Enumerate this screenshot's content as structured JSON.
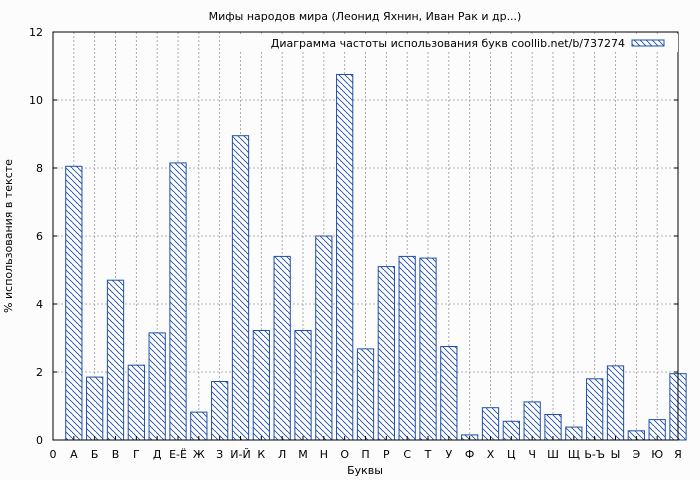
{
  "chart_data": {
    "type": "bar",
    "title": "Мифы народов мира  (Леонид Яхнин, Иван Рак и др...)",
    "xlabel": "Буквы",
    "ylabel": "% использования в тексте",
    "legend": {
      "label": "Диаграмма частоты использования букв coollib.net/b/737274",
      "position": "top-right"
    },
    "x_ticks": [
      "0",
      "А",
      "Б",
      "В",
      "Г",
      "Д",
      "Е-Ё",
      "Ж",
      "З",
      "И-Й",
      "К",
      "Л",
      "М",
      "Н",
      "О",
      "П",
      "Р",
      "С",
      "Т",
      "У",
      "Ф",
      "Х",
      "Ц",
      "Ч",
      "Ш",
      "Щ",
      "Ь-Ъ",
      "Ы",
      "Э",
      "Ю",
      "Я"
    ],
    "categories": [
      "А",
      "Б",
      "В",
      "Г",
      "Д",
      "Е-Ё",
      "Ж",
      "З",
      "И-Й",
      "К",
      "Л",
      "М",
      "Н",
      "О",
      "П",
      "Р",
      "С",
      "Т",
      "У",
      "Ф",
      "Х",
      "Ц",
      "Ч",
      "Ш",
      "Щ",
      "Ь-Ъ",
      "Ы",
      "Э",
      "Ю",
      "Я"
    ],
    "values": [
      8.05,
      1.85,
      4.7,
      2.2,
      3.15,
      8.15,
      0.82,
      1.72,
      8.95,
      3.22,
      5.4,
      3.22,
      6.0,
      10.75,
      2.68,
      5.1,
      5.4,
      5.35,
      2.75,
      0.15,
      0.95,
      0.55,
      1.12,
      0.75,
      0.38,
      1.8,
      2.18,
      0.27,
      0.6,
      1.95
    ],
    "ylim": [
      0,
      12
    ],
    "yticks": [
      0,
      2,
      4,
      6,
      8,
      10,
      12
    ],
    "grid": true,
    "colors": {
      "bar_stroke": "#1f4fa8",
      "hatch": "#1f4fa8"
    }
  }
}
